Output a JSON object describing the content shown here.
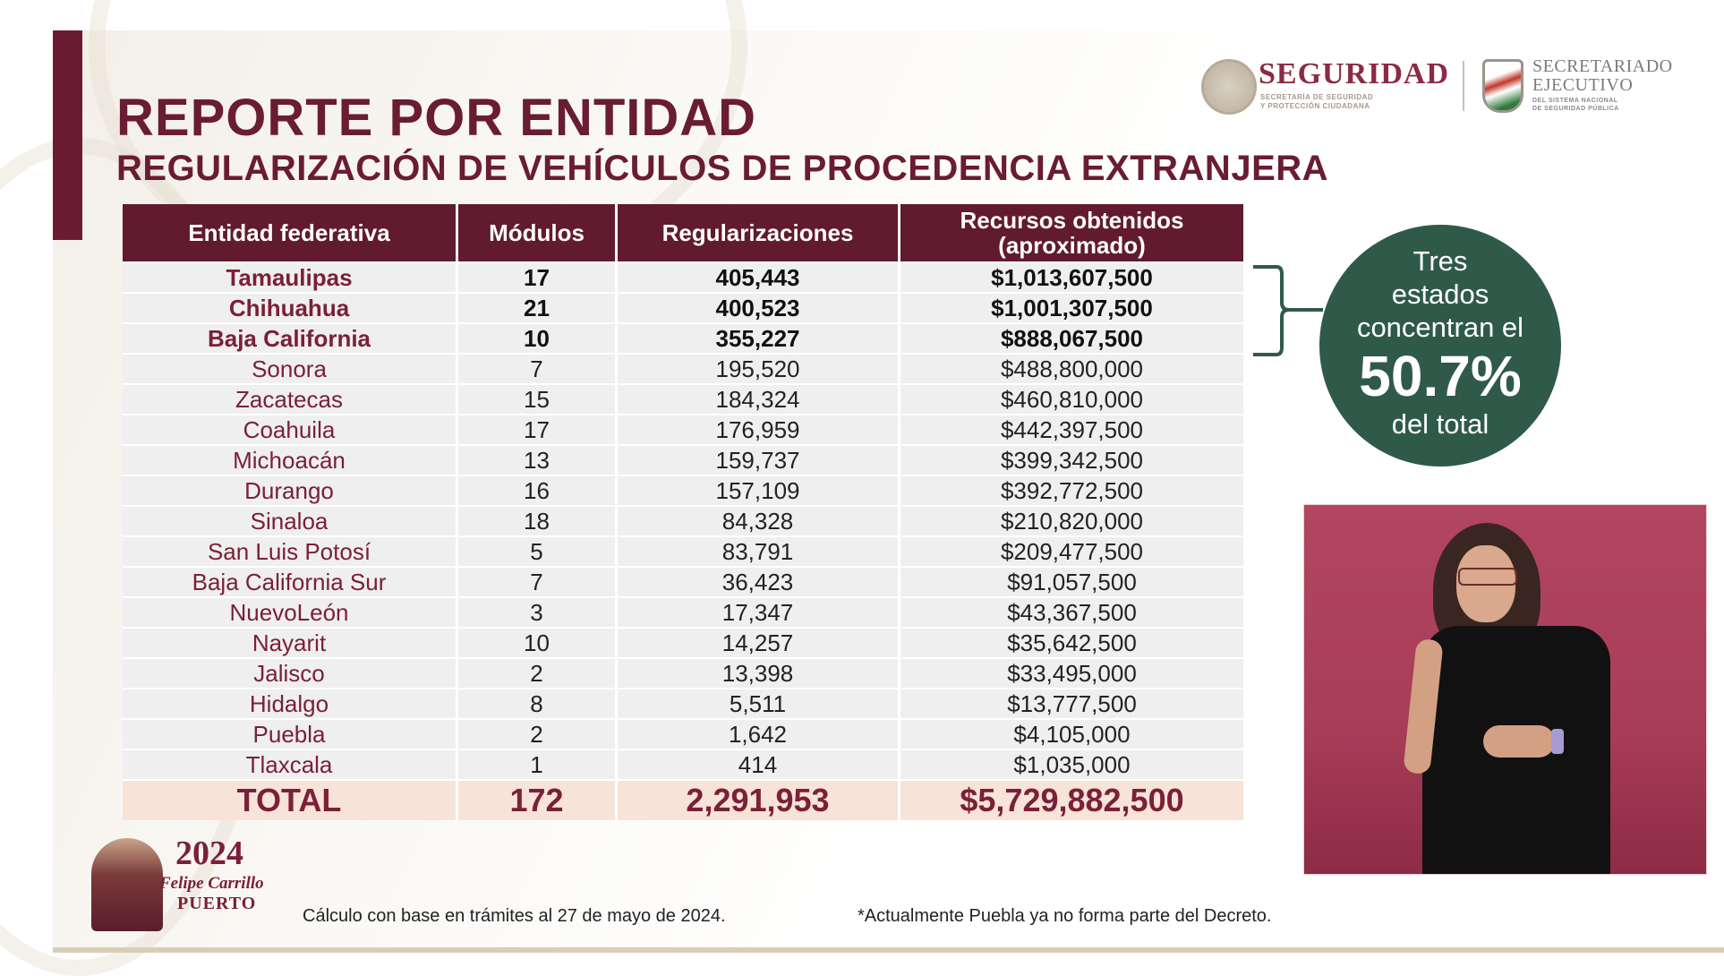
{
  "header": {
    "title": "REPORTE POR ENTIDAD",
    "subtitle": "REGULARIZACIÓN DE VEHÍCULOS DE PROCEDENCIA EXTRANJERA"
  },
  "logos": {
    "seguridad": {
      "name": "SEGURIDAD",
      "sub_line_1": "SECRETARÍA DE SEGURIDAD",
      "sub_line_2": "Y PROTECCIÓN CIUDADANA"
    },
    "secretariado": {
      "name_line_1": "SECRETARIADO",
      "name_line_2": "EJECUTIVO",
      "sub_line_1": "DEL SISTEMA NACIONAL",
      "sub_line_2": "DE SEGURIDAD PÚBLICA"
    }
  },
  "table": {
    "columns": [
      "Entidad federativa",
      "Módulos",
      "Regularizaciones",
      "Recursos obtenidos (aproximado)"
    ],
    "rows": [
      {
        "entidad": "Tamaulipas",
        "modulos": "17",
        "regularizaciones": "405,443",
        "recursos": "$1,013,607,500",
        "highlight": true
      },
      {
        "entidad": "Chihuahua",
        "modulos": "21",
        "regularizaciones": "400,523",
        "recursos": "$1,001,307,500",
        "highlight": true
      },
      {
        "entidad": "Baja California",
        "modulos": "10",
        "regularizaciones": "355,227",
        "recursos": "$888,067,500",
        "highlight": true
      },
      {
        "entidad": "Sonora",
        "modulos": "7",
        "regularizaciones": "195,520",
        "recursos": "$488,800,000",
        "highlight": false
      },
      {
        "entidad": "Zacatecas",
        "modulos": "15",
        "regularizaciones": "184,324",
        "recursos": "$460,810,000",
        "highlight": false
      },
      {
        "entidad": "Coahuila",
        "modulos": "17",
        "regularizaciones": "176,959",
        "recursos": "$442,397,500",
        "highlight": false
      },
      {
        "entidad": "Michoacán",
        "modulos": "13",
        "regularizaciones": "159,737",
        "recursos": "$399,342,500",
        "highlight": false
      },
      {
        "entidad": "Durango",
        "modulos": "16",
        "regularizaciones": "157,109",
        "recursos": "$392,772,500",
        "highlight": false
      },
      {
        "entidad": "Sinaloa",
        "modulos": "18",
        "regularizaciones": "84,328",
        "recursos": "$210,820,000",
        "highlight": false
      },
      {
        "entidad": "San Luis Potosí",
        "modulos": "5",
        "regularizaciones": "83,791",
        "recursos": "$209,477,500",
        "highlight": false
      },
      {
        "entidad": "Baja California Sur",
        "modulos": "7",
        "regularizaciones": "36,423",
        "recursos": "$91,057,500",
        "highlight": false
      },
      {
        "entidad": "NuevoLeón",
        "modulos": "3",
        "regularizaciones": "17,347",
        "recursos": "$43,367,500",
        "highlight": false
      },
      {
        "entidad": "Nayarit",
        "modulos": "10",
        "regularizaciones": "14,257",
        "recursos": "$35,642,500",
        "highlight": false
      },
      {
        "entidad": "Jalisco",
        "modulos": "2",
        "regularizaciones": "13,398",
        "recursos": "$33,495,000",
        "highlight": false
      },
      {
        "entidad": "Hidalgo",
        "modulos": "8",
        "regularizaciones": "5,511",
        "recursos": "$13,777,500",
        "highlight": false
      },
      {
        "entidad": "Puebla",
        "modulos": "2",
        "regularizaciones": "1,642",
        "recursos": "$4,105,000",
        "highlight": false
      },
      {
        "entidad": "Tlaxcala",
        "modulos": "1",
        "regularizaciones": "414",
        "recursos": "$1,035,000",
        "highlight": false
      }
    ],
    "total": {
      "label": "TOTAL",
      "modulos": "172",
      "regularizaciones": "2,291,953",
      "recursos": "$5,729,882,500"
    }
  },
  "callout": {
    "line_1": "Tres",
    "line_2": "estados",
    "line_3": "concentran el",
    "percent": "50.7%",
    "line_4": "del total",
    "color": "#2f5a4a"
  },
  "commemorative": {
    "year": "2024",
    "name_line_1": "Felipe Carrillo",
    "name_line_2": "PUERTO"
  },
  "footer": {
    "note_left": "Cálculo con base en trámites al 27 de mayo de 2024.",
    "note_right": "*Actualmente Puebla ya no forma parte del Decreto."
  },
  "colors": {
    "brand": "#691c32",
    "header_bg": "#611a2e",
    "row_bg": "#efefef",
    "total_bg": "#f7e3d8",
    "callout_green": "#2f5a4a",
    "video_bg": "#a83d58"
  }
}
